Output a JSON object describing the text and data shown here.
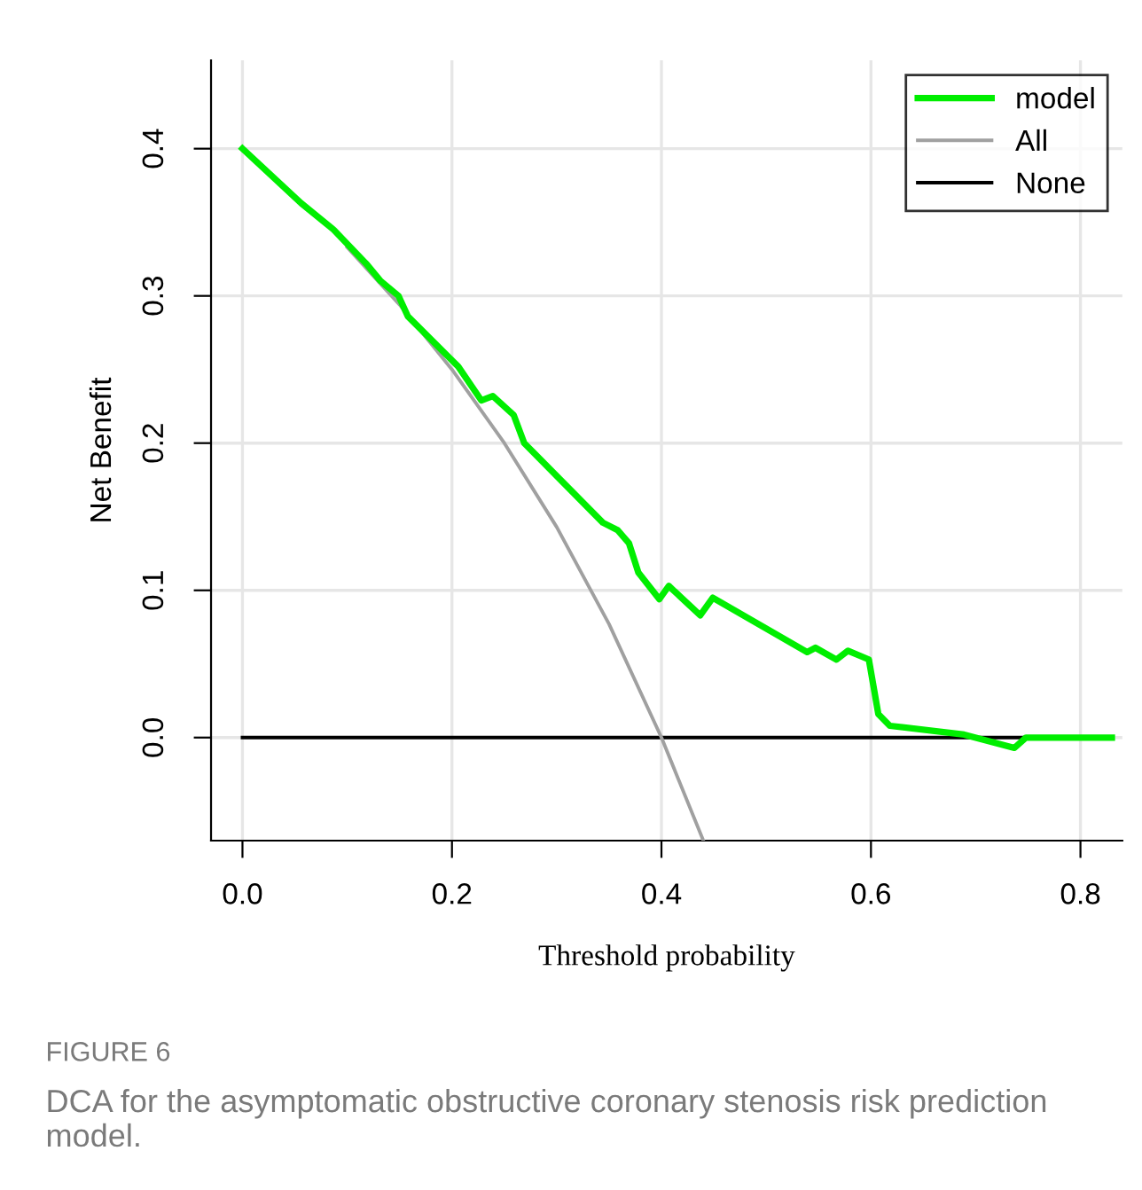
{
  "chart_data": {
    "type": "line",
    "xlabel": "Threshold probability",
    "ylabel": "Net Benefit",
    "series": [
      {
        "name": "model",
        "color": "#00ee00",
        "x": [
          0,
          0.056,
          0.087,
          0.118,
          0.132,
          0.149,
          0.158,
          0.206,
          0.228,
          0.239,
          0.259,
          0.269,
          0.344,
          0.358,
          0.369,
          0.378,
          0.398,
          0.407,
          0.437,
          0.449,
          0.539,
          0.547,
          0.567,
          0.578,
          0.598,
          0.607,
          0.618,
          0.689,
          0.737,
          0.748,
          0.83
        ],
        "values": [
          0.4,
          0.363,
          0.345,
          0.322,
          0.31,
          0.3,
          0.286,
          0.252,
          0.229,
          0.232,
          0.219,
          0.2,
          0.146,
          0.141,
          0.132,
          0.112,
          0.094,
          0.103,
          0.083,
          0.095,
          0.058,
          0.061,
          0.053,
          0.059,
          0.053,
          0.016,
          0.008,
          0.002,
          -0.007,
          0,
          0
        ]
      },
      {
        "name": "All",
        "color": "#a0a0a0",
        "x": [
          0.1,
          0.15,
          0.2,
          0.25,
          0.3,
          0.35,
          0.4,
          0.44
        ],
        "values": [
          0.333,
          0.294,
          0.25,
          0.2,
          0.143,
          0.077,
          0,
          -0.07
        ]
      },
      {
        "name": "None",
        "color": "#000000",
        "x": [
          0,
          0.75
        ],
        "values": [
          0,
          0
        ]
      }
    ],
    "xlim": [
      -0.03,
      0.84
    ],
    "ylim": [
      -0.07,
      0.46
    ],
    "xticks": [
      {
        "value": 0,
        "label": "0.0"
      },
      0.2,
      0.4,
      0.6,
      0.8
    ],
    "yticks": [
      {
        "value": 0,
        "label": "0.0"
      },
      0.1,
      0.2,
      0.3,
      0.4
    ],
    "grid": true,
    "legend": "top right",
    "annotations": [
      "FIGURE 6",
      "DCA for the asymptomatic obstructive coronary stenosis risk prediction model."
    ]
  }
}
